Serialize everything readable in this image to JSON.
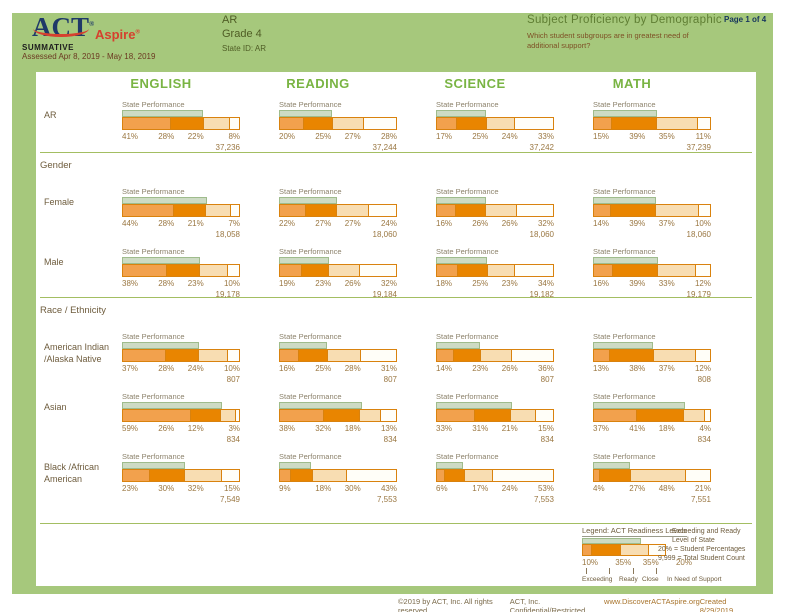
{
  "header": {
    "logo_act": "ACT",
    "logo_aspire": "Aspire",
    "program": "SUMMATIVE",
    "assessed": "Assessed Apr 8, 2019 - May 18, 2019",
    "entity": "AR",
    "grade": "Grade 4",
    "state_id": "State ID: AR",
    "title": "Subject Proficiency by Demographic",
    "question": "Which student subgroups are in greatest need of additional support?",
    "page": "Page 1 of 4"
  },
  "subjects": [
    "ENGLISH",
    "READING",
    "SCIENCE",
    "MATH"
  ],
  "cell_label": "State Performance",
  "groups": [
    {
      "header": "",
      "rows": [
        {
          "label": "AR",
          "cells": [
            {
              "pcts": [
                "41%",
                "28%",
                "22%",
                "8%"
              ],
              "count": "37,236"
            },
            {
              "pcts": [
                "20%",
                "25%",
                "27%",
                "28%"
              ],
              "count": "37,244"
            },
            {
              "pcts": [
                "17%",
                "25%",
                "24%",
                "33%"
              ],
              "count": "37,242"
            },
            {
              "pcts": [
                "15%",
                "39%",
                "35%",
                "11%"
              ],
              "count": "37,239"
            }
          ]
        }
      ]
    },
    {
      "header": "Gender",
      "rows": [
        {
          "label": "Female",
          "cells": [
            {
              "pcts": [
                "44%",
                "28%",
                "21%",
                "7%"
              ],
              "count": "18,058"
            },
            {
              "pcts": [
                "22%",
                "27%",
                "27%",
                "24%"
              ],
              "count": "18,060"
            },
            {
              "pcts": [
                "16%",
                "26%",
                "26%",
                "32%"
              ],
              "count": "18,060"
            },
            {
              "pcts": [
                "14%",
                "39%",
                "37%",
                "10%"
              ],
              "count": "18,060"
            }
          ]
        },
        {
          "label": "Male",
          "cells": [
            {
              "pcts": [
                "38%",
                "28%",
                "23%",
                "10%"
              ],
              "count": "19,178"
            },
            {
              "pcts": [
                "19%",
                "23%",
                "26%",
                "32%"
              ],
              "count": "19,184"
            },
            {
              "pcts": [
                "18%",
                "25%",
                "23%",
                "34%"
              ],
              "count": "19,182"
            },
            {
              "pcts": [
                "16%",
                "39%",
                "33%",
                "12%"
              ],
              "count": "19,179"
            }
          ]
        }
      ]
    },
    {
      "header": "Race / Ethnicity",
      "rows": [
        {
          "label": "American Indian\n/Alaska Native",
          "cells": [
            {
              "pcts": [
                "37%",
                "28%",
                "24%",
                "10%"
              ],
              "count": "807"
            },
            {
              "pcts": [
                "16%",
                "25%",
                "28%",
                "31%"
              ],
              "count": "807"
            },
            {
              "pcts": [
                "14%",
                "23%",
                "26%",
                "36%"
              ],
              "count": "807"
            },
            {
              "pcts": [
                "13%",
                "38%",
                "37%",
                "12%"
              ],
              "count": "808"
            }
          ]
        },
        {
          "label": "Asian",
          "cells": [
            {
              "pcts": [
                "59%",
                "26%",
                "12%",
                "3%"
              ],
              "count": "834"
            },
            {
              "pcts": [
                "38%",
                "32%",
                "18%",
                "13%"
              ],
              "count": "834"
            },
            {
              "pcts": [
                "33%",
                "31%",
                "21%",
                "15%"
              ],
              "count": "834"
            },
            {
              "pcts": [
                "37%",
                "41%",
                "18%",
                "4%"
              ],
              "count": "834"
            }
          ]
        },
        {
          "label": "Black /African\nAmerican",
          "cells": [
            {
              "pcts": [
                "23%",
                "30%",
                "32%",
                "15%"
              ],
              "count": "7,549"
            },
            {
              "pcts": [
                "9%",
                "18%",
                "30%",
                "43%"
              ],
              "count": "7,553"
            },
            {
              "pcts": [
                "6%",
                "17%",
                "24%",
                "53%"
              ],
              "count": "7,553"
            },
            {
              "pcts": [
                "4%",
                "27%",
                "48%",
                "21%"
              ],
              "count": "7,551"
            }
          ]
        }
      ]
    }
  ],
  "legend": {
    "title": "Legend: ACT Readiness Levels",
    "bar_pcts": [
      "10%",
      "35%",
      "35%",
      "20%"
    ],
    "level_labels": [
      "Exceeding",
      "Ready",
      "Close",
      "In Need of Support"
    ],
    "overlay_note": "Exceeding and Ready\nLevel of State",
    "pct_note": "20% = Student Percentages",
    "count_note": "9,999 = Total Student Count"
  },
  "footer": {
    "copyright": "©2019 by ACT, Inc. All rights reserved.",
    "confidential": "ACT, Inc. Confidential/Restricted",
    "url": "www.DiscoverACTAspire.org",
    "created": "Created 8/29/2019"
  },
  "colors": {
    "page_bg": "#A6C87C",
    "subject_header": "#79B443",
    "exceeding": "#F2A14D",
    "ready": "#E98500",
    "close": "#F8DDB2",
    "in_need_of_support": "#FFFEF8",
    "bar_border": "#D9820E",
    "overlay_fill": "#CDDBC4",
    "overlay_border": "#9FBC8C"
  }
}
